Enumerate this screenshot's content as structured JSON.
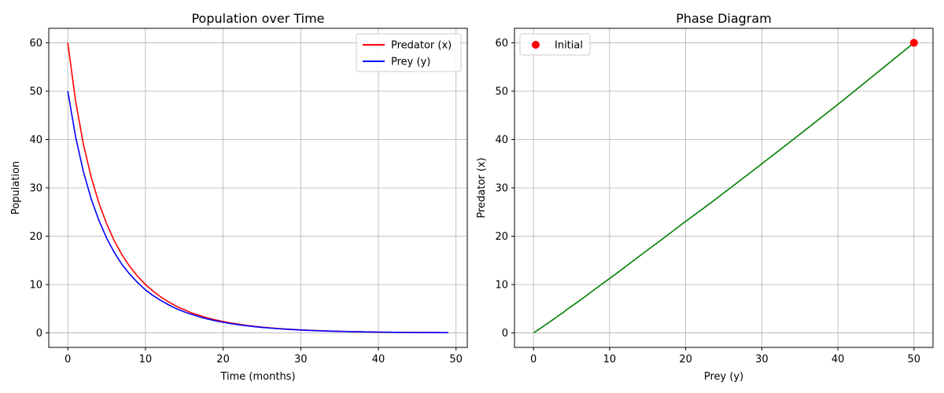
{
  "chart_data": [
    {
      "type": "line",
      "title": "Population over Time",
      "xlabel": "Time (months)",
      "ylabel": "Population",
      "xlim": [
        -2.45,
        51.45
      ],
      "ylim": [
        -3,
        63
      ],
      "xticks": [
        0,
        10,
        20,
        30,
        40,
        50
      ],
      "yticks": [
        0,
        10,
        20,
        30,
        40,
        50,
        60
      ],
      "grid": true,
      "legend_position": "upper right",
      "x": [
        0,
        1,
        2,
        3,
        4,
        5,
        6,
        7,
        8,
        9,
        10,
        11,
        12,
        13,
        14,
        15,
        16,
        17,
        18,
        19,
        20,
        21,
        22,
        23,
        24,
        25,
        26,
        27,
        28,
        29,
        30,
        31,
        32,
        33,
        34,
        35,
        36,
        37,
        38,
        39,
        40,
        41,
        42,
        43,
        44,
        45,
        46,
        47,
        48,
        49
      ],
      "series": [
        {
          "name": "Predator (x)",
          "color": "#ff0000",
          "values": [
            60.0,
            48.0,
            39.1,
            32.3,
            26.9,
            22.6,
            19.0,
            16.1,
            13.7,
            11.7,
            10.0,
            8.6,
            7.4,
            6.4,
            5.5,
            4.8,
            4.1,
            3.6,
            3.1,
            2.7,
            2.35,
            2.05,
            1.8,
            1.57,
            1.37,
            1.2,
            1.05,
            0.92,
            0.81,
            0.71,
            0.62,
            0.55,
            0.48,
            0.42,
            0.37,
            0.33,
            0.29,
            0.25,
            0.22,
            0.2,
            0.17,
            0.15,
            0.13,
            0.12,
            0.1,
            0.09,
            0.08,
            0.07,
            0.06,
            0.06
          ]
        },
        {
          "name": "Prey (y)",
          "color": "#0000ff",
          "values": [
            50.0,
            40.6,
            33.4,
            27.8,
            23.3,
            19.6,
            16.6,
            14.1,
            12.1,
            10.4,
            8.9,
            7.7,
            6.7,
            5.8,
            5.0,
            4.35,
            3.8,
            3.3,
            2.88,
            2.52,
            2.2,
            1.93,
            1.69,
            1.48,
            1.3,
            1.14,
            1.0,
            0.88,
            0.77,
            0.68,
            0.6,
            0.53,
            0.46,
            0.41,
            0.36,
            0.32,
            0.28,
            0.25,
            0.22,
            0.19,
            0.17,
            0.15,
            0.13,
            0.11,
            0.1,
            0.09,
            0.08,
            0.07,
            0.06,
            0.05
          ]
        }
      ]
    },
    {
      "type": "line",
      "title": "Phase Diagram",
      "xlabel": "Prey (y)",
      "ylabel": "Predator (x)",
      "xlim": [
        -2.5,
        52.5
      ],
      "ylim": [
        -3,
        63
      ],
      "xticks": [
        0,
        10,
        20,
        30,
        40,
        50
      ],
      "yticks": [
        0,
        10,
        20,
        30,
        40,
        50,
        60
      ],
      "grid": true,
      "legend_position": "upper left",
      "series": [
        {
          "name": "",
          "color": "#008000",
          "x": [
            50.0,
            40.6,
            33.4,
            27.8,
            23.3,
            19.6,
            16.6,
            14.1,
            12.1,
            10.4,
            8.9,
            7.7,
            6.7,
            5.8,
            5.0,
            4.35,
            3.8,
            3.3,
            2.88,
            2.52,
            2.2,
            1.93,
            1.69,
            1.48,
            1.3,
            1.14,
            1.0,
            0.88,
            0.77,
            0.68,
            0.6,
            0.53,
            0.46,
            0.41,
            0.36,
            0.32,
            0.28,
            0.25,
            0.22,
            0.19,
            0.17,
            0.15,
            0.13,
            0.11,
            0.1,
            0.09,
            0.08,
            0.07,
            0.06,
            0.05
          ],
          "y": [
            60.0,
            48.0,
            39.1,
            32.3,
            26.9,
            22.6,
            19.0,
            16.1,
            13.7,
            11.7,
            10.0,
            8.6,
            7.4,
            6.4,
            5.5,
            4.8,
            4.1,
            3.6,
            3.1,
            2.7,
            2.35,
            2.05,
            1.8,
            1.57,
            1.37,
            1.2,
            1.05,
            0.92,
            0.81,
            0.71,
            0.62,
            0.55,
            0.48,
            0.42,
            0.37,
            0.33,
            0.29,
            0.25,
            0.22,
            0.2,
            0.17,
            0.15,
            0.13,
            0.12,
            0.1,
            0.09,
            0.08,
            0.07,
            0.06,
            0.06
          ]
        },
        {
          "name": "Initial",
          "color": "#ff0000",
          "type": "scatter",
          "x": [
            50
          ],
          "y": [
            60
          ]
        }
      ]
    }
  ]
}
